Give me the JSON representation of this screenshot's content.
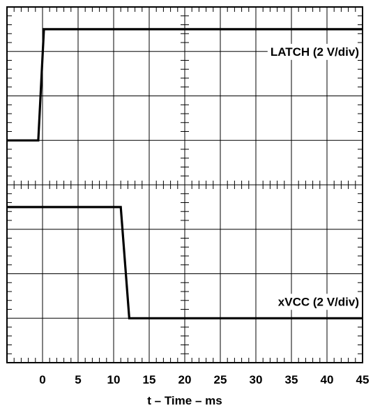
{
  "chart_data": {
    "type": "line",
    "title": "",
    "xlabel": "t – Time – ms",
    "ylabel": "",
    "xlim": [
      -5,
      45
    ],
    "ylim": [
      -8,
      8
    ],
    "x_ticks": [
      0,
      5,
      10,
      15,
      20,
      25,
      30,
      35,
      40,
      45
    ],
    "grid": true,
    "series": [
      {
        "name": "LATCH (2 V/div)",
        "color": "#000000",
        "x": [
          -5,
          -0.6,
          0.2,
          45
        ],
        "y": [
          2.0,
          2.0,
          7.0,
          7.0
        ]
      },
      {
        "name": "xVCC (2 V/div)",
        "color": "#000000",
        "x": [
          -5,
          11.0,
          12.2,
          45
        ],
        "y": [
          -1.0,
          -1.0,
          -6.0,
          -6.0
        ]
      }
    ]
  }
}
